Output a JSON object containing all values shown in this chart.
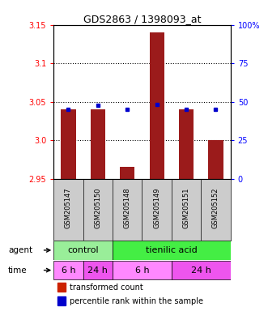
{
  "title": "GDS2863 / 1398093_at",
  "samples": [
    "GSM205147",
    "GSM205150",
    "GSM205148",
    "GSM205149",
    "GSM205151",
    "GSM205152"
  ],
  "bar_values": [
    3.04,
    3.04,
    2.965,
    3.14,
    3.04,
    3.0
  ],
  "bar_bottom": 2.95,
  "percentile_values": [
    3.04,
    3.045,
    3.04,
    3.046,
    3.04,
    3.04
  ],
  "ylim_left": [
    2.95,
    3.15
  ],
  "yticks_left": [
    2.95,
    3.0,
    3.05,
    3.1,
    3.15
  ],
  "yticks_right": [
    0,
    25,
    50,
    75,
    100
  ],
  "ylim_right": [
    0,
    100
  ],
  "bar_color": "#9B1B1B",
  "dot_color": "#0000CC",
  "agent_groups": [
    {
      "label": "control",
      "start": 0,
      "end": 2,
      "color": "#99EE99"
    },
    {
      "label": "tienilic acid",
      "start": 2,
      "end": 6,
      "color": "#44EE44"
    }
  ],
  "time_groups": [
    {
      "label": "6 h",
      "start": 0,
      "end": 1,
      "color": "#FF88FF"
    },
    {
      "label": "24 h",
      "start": 1,
      "end": 2,
      "color": "#EE55EE"
    },
    {
      "label": "6 h",
      "start": 2,
      "end": 4,
      "color": "#FF88FF"
    },
    {
      "label": "24 h",
      "start": 4,
      "end": 6,
      "color": "#EE55EE"
    }
  ],
  "legend_bar_color": "#CC2200",
  "legend_dot_color": "#0000CC",
  "background_color": "#ffffff",
  "plot_bg": "#ffffff",
  "label_bg": "#CCCCCC",
  "grid_yticks": [
    3.0,
    3.05,
    3.1
  ]
}
